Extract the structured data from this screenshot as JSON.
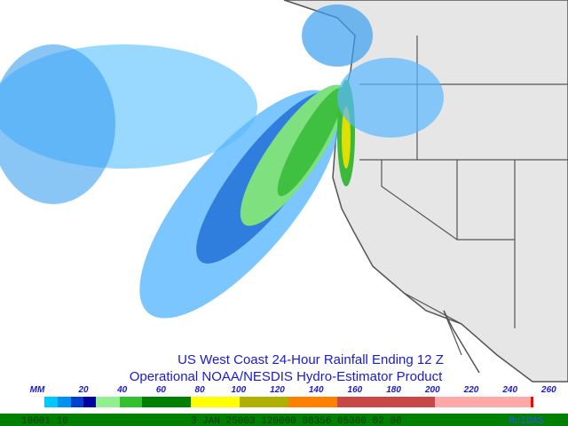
{
  "title_lines": [
    "US West Coast 24-Hour Rainfall  Ending 12 Z",
    "Operational NOAA/NESDIS  Hydro-Estimator Product"
  ],
  "colorbar": {
    "unit": "MM",
    "labels": [
      "20",
      "40",
      "60",
      "80",
      "100",
      "120",
      "140",
      "160",
      "180",
      "200",
      "220",
      "240",
      "260"
    ]
  },
  "status_bar": {
    "left": "10001    10",
    "middle": "3 JAN 25003 120000 08356 05300 02 00",
    "right": "McIDAS"
  }
}
